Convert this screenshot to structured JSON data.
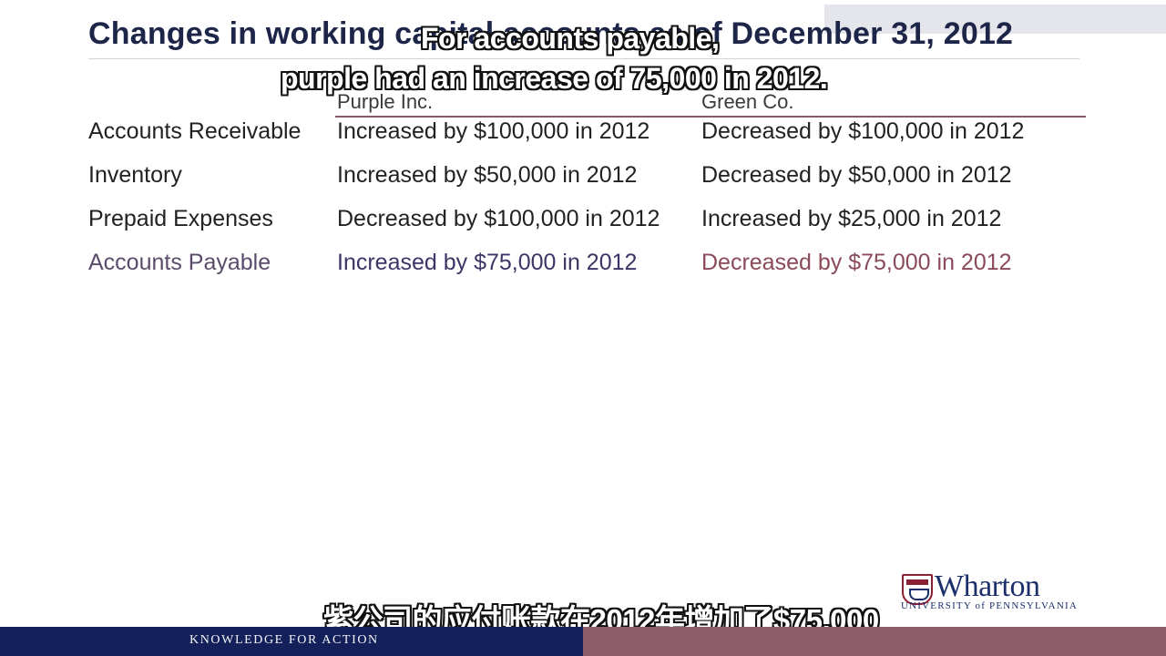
{
  "slide": {
    "title": "Changes in working capital accounts as of December 31, 2012"
  },
  "table": {
    "columns": [
      "Purple Inc.",
      "Green Co."
    ],
    "rows": [
      {
        "label": "Accounts Receivable",
        "purple": "Increased by $100,000 in 2012",
        "green": "Decreased by $100,000 in 2012"
      },
      {
        "label": "Inventory",
        "purple": "Increased by $50,000 in 2012",
        "green": "Decreased by $50,000 in 2012"
      },
      {
        "label": "Prepaid Expenses",
        "purple": "Decreased by $100,000 in 2012",
        "green": "Increased by $25,000 in 2012"
      },
      {
        "label": "Accounts Payable",
        "purple": "Increased by $75,000 in 2012",
        "green": "Decreased by $75,000 in 2012"
      }
    ]
  },
  "subtitles": {
    "english_line1": "For accounts payable,",
    "english_line2": "purple had an increase of 75,000 in 2012.",
    "chinese": "紫公司的应付账款在2012年增加了$75,000"
  },
  "logo": {
    "name": "Wharton",
    "subtitle": "UNIVERSITY of PENNSYLVANIA"
  },
  "footer": {
    "tagline": "KNOWLEDGE FOR ACTION"
  },
  "colors": {
    "title": "#1d2648",
    "footer_left": "#14205a",
    "footer_right": "#8c5c69",
    "logo": "#1d2f6a"
  }
}
